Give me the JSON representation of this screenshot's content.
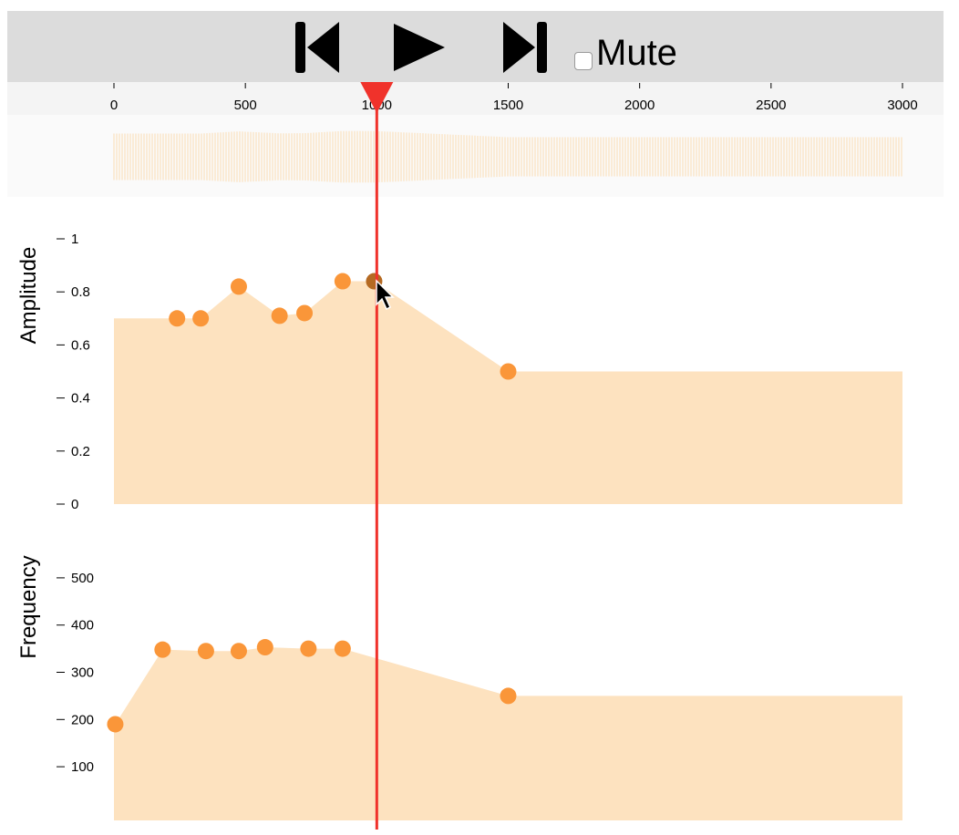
{
  "toolbar": {
    "prev_icon": "skip-back-icon",
    "play_icon": "play-icon",
    "next_icon": "skip-forward-icon",
    "mute_label": "Mute",
    "mute_checked": false
  },
  "timeline": {
    "ticks": [
      "0",
      "500",
      "1000",
      "1500",
      "2000",
      "2500",
      "3000"
    ],
    "tick_values": [
      0,
      500,
      1000,
      1500,
      2000,
      2500,
      3000
    ],
    "range": [
      0,
      3000
    ],
    "playhead_time": 1000,
    "playhead_color": "#f0322b"
  },
  "colors": {
    "fill": "#fde2bf",
    "point": "#fa9639",
    "point_hover": "#b56a22",
    "waveform": "#fbe1bd"
  },
  "chart_data": [
    {
      "type": "area",
      "ylabel": "Amplitude",
      "ylim": [
        0,
        1
      ],
      "yticks": [
        "1",
        "0.8",
        "0.6",
        "0.4",
        "0.2",
        "0"
      ],
      "ytick_values": [
        1,
        0.8,
        0.6,
        0.4,
        0.2,
        0
      ],
      "xlim": [
        0,
        3000
      ],
      "x": [
        240,
        330,
        475,
        630,
        725,
        870,
        990,
        1500
      ],
      "y": [
        0.7,
        0.7,
        0.82,
        0.71,
        0.72,
        0.84,
        0.84,
        0.5
      ],
      "start_value": 0.7,
      "end_value": 0.5,
      "hovered_index": 6
    },
    {
      "type": "area",
      "ylabel": "Frequency",
      "ylim": [
        50,
        550
      ],
      "yticks": [
        "500",
        "400",
        "300",
        "200",
        "100"
      ],
      "ytick_values": [
        500,
        400,
        300,
        200,
        100
      ],
      "xlim": [
        0,
        3000
      ],
      "x": [
        5,
        185,
        350,
        475,
        575,
        740,
        870,
        1500
      ],
      "y": [
        190,
        348,
        345,
        345,
        353,
        350,
        350,
        250
      ],
      "start_value": 190,
      "end_value": 250,
      "hovered_index": -1
    }
  ]
}
